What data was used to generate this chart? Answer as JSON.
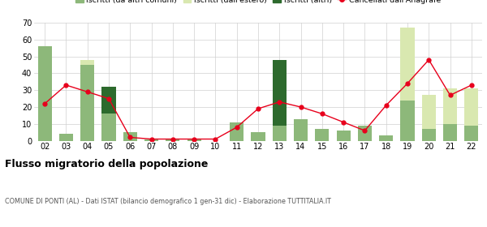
{
  "years": [
    "02",
    "03",
    "04",
    "05",
    "06",
    "07",
    "08",
    "09",
    "10",
    "11",
    "12",
    "13",
    "14",
    "15",
    "16",
    "17",
    "18",
    "19",
    "20",
    "21",
    "22"
  ],
  "iscritti_comuni": [
    56,
    4,
    45,
    16,
    5,
    1,
    1,
    1,
    0,
    11,
    5,
    9,
    13,
    7,
    6,
    9,
    3,
    24,
    7,
    10,
    9
  ],
  "iscritti_estero": [
    0,
    0,
    3,
    0,
    0,
    0,
    0,
    0,
    0,
    0,
    0,
    0,
    0,
    0,
    0,
    0,
    0,
    43,
    20,
    21,
    22
  ],
  "iscritti_altri": [
    0,
    0,
    0,
    16,
    0,
    0,
    0,
    0,
    0,
    0,
    0,
    39,
    0,
    0,
    0,
    0,
    0,
    0,
    0,
    0,
    0
  ],
  "cancellati": [
    22,
    33,
    29,
    25,
    2,
    1,
    1,
    1,
    1,
    8,
    19,
    23,
    20,
    16,
    11,
    6,
    21,
    34,
    48,
    27,
    33
  ],
  "color_comuni": "#8db87a",
  "color_estero": "#d9e8b0",
  "color_altri": "#2d6a2d",
  "color_cancellati": "#e8001c",
  "ylim": [
    0,
    70
  ],
  "yticks": [
    0,
    10,
    20,
    30,
    40,
    50,
    60,
    70
  ],
  "title": "Flusso migratorio della popolazione",
  "subtitle": "COMUNE DI PONTI (AL) - Dati ISTAT (bilancio demografico 1 gen-31 dic) - Elaborazione TUTTITALIA.IT",
  "legend_labels": [
    "Iscritti (da altri comuni)",
    "Iscritti (dall'estero)",
    "Iscritti (altri)",
    "Cancellati dall'Anagrafe"
  ],
  "background_color": "#ffffff",
  "grid_color": "#d0d0d0"
}
